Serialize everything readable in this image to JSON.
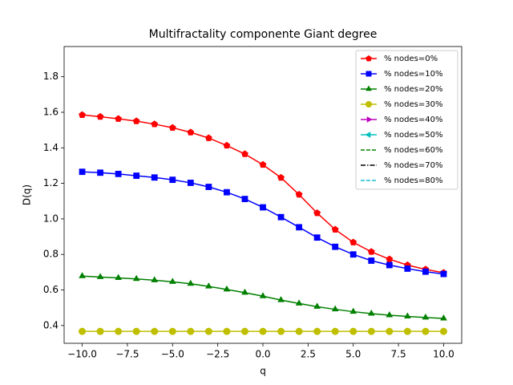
{
  "chart_data": {
    "type": "line",
    "title": "Multifractality componente Giant degree",
    "xlabel": "q",
    "ylabel": "D(q)",
    "x": [
      -10,
      -9,
      -8,
      -7,
      -6,
      -5,
      -4,
      -3,
      -2,
      -1,
      0,
      1,
      2,
      3,
      4,
      5,
      6,
      7,
      8,
      9,
      10
    ],
    "xlim": [
      -11.0,
      11.0
    ],
    "ylim": [
      0.3,
      1.97
    ],
    "xticks": [
      {
        "value": -10,
        "label": "−10.0"
      },
      {
        "value": -7.5,
        "label": "−7.5"
      },
      {
        "value": -5,
        "label": "−5.0"
      },
      {
        "value": -2.5,
        "label": "−2.5"
      },
      {
        "value": 0,
        "label": "0.0"
      },
      2.5,
      {
        "value": 5,
        "label": "5.0"
      },
      7.5,
      {
        "value": 10,
        "label": "10.0"
      }
    ],
    "yticks": [
      0.4,
      0.6,
      0.8,
      {
        "value": 1,
        "label": "1.0"
      },
      1.2,
      1.4,
      1.6,
      1.8
    ],
    "legend": "upper right",
    "series": [
      {
        "name": "% nodes=0%",
        "color": "#ff0000",
        "marker": "pentagon",
        "linestyle": "solid",
        "values": [
          1.585,
          1.575,
          1.563,
          1.55,
          1.533,
          1.513,
          1.487,
          1.455,
          1.413,
          1.365,
          1.305,
          1.232,
          1.137,
          1.033,
          0.94,
          0.868,
          0.815,
          0.773,
          0.74,
          0.716,
          0.697
        ]
      },
      {
        "name": "% nodes=10%",
        "color": "#0000ff",
        "marker": "square",
        "linestyle": "solid",
        "values": [
          1.265,
          1.26,
          1.253,
          1.243,
          1.233,
          1.22,
          1.203,
          1.18,
          1.15,
          1.112,
          1.065,
          1.01,
          0.953,
          0.895,
          0.843,
          0.8,
          0.765,
          0.74,
          0.72,
          0.703,
          0.69
        ]
      },
      {
        "name": "% nodes=20%",
        "color": "#008000",
        "marker": "triangle-up",
        "linestyle": "solid",
        "values": [
          0.678,
          0.673,
          0.668,
          0.662,
          0.655,
          0.646,
          0.635,
          0.62,
          0.603,
          0.585,
          0.565,
          0.543,
          0.524,
          0.506,
          0.491,
          0.478,
          0.467,
          0.458,
          0.451,
          0.445,
          0.44
        ]
      },
      {
        "name": "% nodes=30%",
        "color": "#bfbf00",
        "marker": "circle",
        "linestyle": "solid",
        "values": [
          0.367,
          0.367,
          0.367,
          0.367,
          0.367,
          0.367,
          0.367,
          0.367,
          0.367,
          0.367,
          0.367,
          0.367,
          0.367,
          0.367,
          0.367,
          0.367,
          0.367,
          0.367,
          0.367,
          0.367,
          0.367
        ]
      },
      {
        "name": "% nodes=40%",
        "color": "#bf00bf",
        "marker": "triangle-right",
        "linestyle": "solid",
        "values": [
          null,
          null,
          null,
          null,
          null,
          null,
          null,
          null,
          null,
          null,
          null,
          null,
          null,
          null,
          null,
          null,
          null,
          null,
          null,
          null,
          null
        ]
      },
      {
        "name": "% nodes=50%",
        "color": "#00bfbf",
        "marker": "triangle-left",
        "linestyle": "solid",
        "values": [
          null,
          null,
          null,
          null,
          null,
          null,
          null,
          null,
          null,
          null,
          null,
          null,
          null,
          null,
          null,
          null,
          null,
          null,
          null,
          null,
          null
        ]
      },
      {
        "name": "% nodes=60%",
        "color": "#008000",
        "marker": "none",
        "linestyle": "dashed",
        "values": [
          null,
          null,
          null,
          null,
          null,
          null,
          null,
          null,
          null,
          null,
          null,
          null,
          null,
          null,
          null,
          null,
          null,
          null,
          null,
          null,
          null
        ]
      },
      {
        "name": "% nodes=70%",
        "color": "#000000",
        "marker": "none",
        "linestyle": "dashdot",
        "values": [
          null,
          null,
          null,
          null,
          null,
          null,
          null,
          null,
          null,
          null,
          null,
          null,
          null,
          null,
          null,
          null,
          null,
          null,
          null,
          null,
          null
        ]
      },
      {
        "name": "% nodes=80%",
        "color": "#17becf",
        "marker": "none",
        "linestyle": "dashed",
        "values": [
          null,
          null,
          null,
          null,
          null,
          null,
          null,
          null,
          null,
          null,
          null,
          null,
          null,
          null,
          null,
          null,
          null,
          null,
          null,
          null,
          null
        ]
      }
    ]
  }
}
